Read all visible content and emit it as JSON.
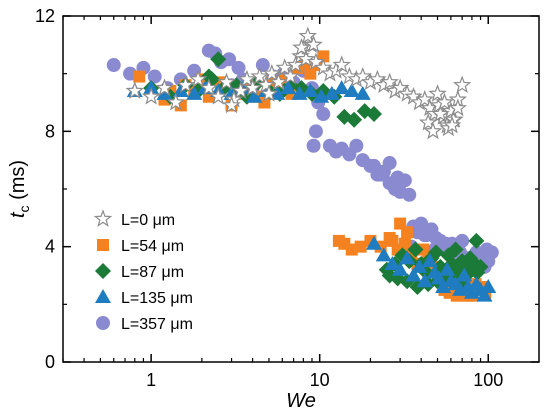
{
  "chart_data": {
    "type": "scatter",
    "title": "",
    "xlabel": "We",
    "ylabel": {
      "main": "t",
      "sub": "c",
      "unit": " (ms)"
    },
    "xscale": "log",
    "xlim": [
      0.3,
      200
    ],
    "ylim": [
      0,
      12
    ],
    "xticks": [
      1,
      10,
      100
    ],
    "xtick_labels": [
      "1",
      "10",
      "100"
    ],
    "yticks": [
      0,
      4,
      8,
      12
    ],
    "ytick_labels": [
      "0",
      "4",
      "8",
      "12"
    ],
    "grid": false,
    "legend_position": "lower-left",
    "series": [
      {
        "name": "L=0 μm",
        "marker": "star-open",
        "color": "#8c8c8c",
        "x": [
          0.8,
          1.0,
          1.2,
          1.4,
          1.6,
          1.9,
          2.2,
          2.5,
          2.8,
          3.1,
          3.4,
          3.7,
          4.0,
          4.4,
          4.8,
          5.2,
          5.7,
          6.2,
          6.7,
          7.2,
          7.7,
          8.3,
          8.9,
          9.5,
          10.5,
          11.5,
          12.5,
          13.5,
          15,
          16.5,
          18,
          20,
          22,
          24,
          26,
          28,
          30,
          33,
          36,
          39,
          42,
          45,
          48,
          51,
          54,
          57,
          60,
          63,
          66,
          70,
          8.5,
          9.2,
          7.8,
          3.0,
          5.0,
          44,
          47,
          52,
          58,
          62,
          66,
          50,
          55,
          61
        ],
        "y": [
          9.4,
          9.2,
          9.5,
          9.0,
          9.6,
          9.8,
          9.5,
          9.2,
          9.7,
          9.1,
          9.4,
          9.8,
          9.5,
          9.9,
          9.6,
          10.0,
          9.7,
          10.2,
          9.9,
          10.3,
          10.6,
          10.5,
          11.0,
          10.4,
          10.2,
          10.0,
          10.1,
          10.3,
          9.9,
          9.8,
          9.9,
          9.7,
          9.8,
          9.6,
          9.7,
          9.4,
          9.5,
          9.3,
          9.2,
          9.0,
          9.1,
          8.8,
          8.6,
          8.9,
          8.5,
          8.2,
          8.7,
          8.4,
          9.1,
          9.6,
          11.3,
          11.0,
          10.9,
          8.9,
          9.3,
          8.3,
          8.0,
          8.6,
          8.1,
          8.4,
          8.8,
          9.3,
          9.0,
          8.2
        ]
      },
      {
        "name": "L=54 μm",
        "marker": "square",
        "color": "#f48220",
        "x": [
          0.85,
          1.2,
          1.5,
          1.8,
          2.2,
          2.6,
          3.0,
          3.4,
          3.8,
          4.2,
          4.7,
          5.2,
          5.7,
          6.2,
          6.8,
          7.4,
          8.1,
          8.8,
          9.6,
          10.5,
          1.3,
          1.6,
          2.0,
          3.2,
          13,
          14,
          15.5,
          17.5,
          20,
          23,
          26,
          29,
          32,
          35,
          38,
          41,
          44,
          47,
          50,
          53,
          56,
          59,
          62,
          65,
          68,
          72,
          76,
          80,
          84,
          88,
          92,
          96,
          30,
          27,
          33,
          60,
          65,
          70,
          55,
          58,
          75,
          82
        ],
        "y": [
          9.9,
          9.1,
          8.9,
          9.4,
          9.2,
          9.7,
          8.9,
          9.3,
          9.6,
          9.2,
          9.0,
          9.7,
          9.4,
          9.8,
          9.3,
          10.2,
          10.4,
          10.0,
          10.3,
          10.6,
          9.4,
          9.6,
          9.8,
          9.5,
          4.2,
          4.1,
          3.9,
          4.0,
          4.2,
          4.0,
          4.3,
          3.9,
          4.1,
          3.7,
          3.4,
          3.9,
          3.6,
          3.3,
          3.2,
          3.0,
          2.7,
          2.4,
          2.6,
          2.3,
          2.5,
          2.6,
          2.4,
          2.3,
          2.7,
          2.5,
          2.6,
          2.4,
          4.8,
          4.2,
          4.5,
          2.8,
          2.9,
          2.4,
          2.5,
          2.7,
          2.3,
          2.5
        ]
      },
      {
        "name": "L=87 μm",
        "marker": "diamond",
        "color": "#1b7a37",
        "x": [
          1.0,
          1.3,
          1.6,
          1.9,
          2.3,
          2.7,
          3.2,
          3.7,
          4.3,
          5.0,
          5.8,
          6.7,
          7.8,
          9.0,
          10.5,
          12.2,
          14,
          16,
          18.5,
          21,
          2.5,
          2.2,
          25,
          28,
          31,
          34,
          37,
          40,
          43,
          46,
          49,
          52,
          55,
          58,
          61,
          64,
          67,
          70,
          74,
          78,
          82,
          86,
          90,
          26,
          29,
          33,
          38,
          44,
          50,
          57,
          63,
          69,
          75,
          80,
          85
        ],
        "y": [
          9.5,
          9.2,
          9.6,
          9.4,
          9.8,
          9.5,
          9.6,
          9.2,
          9.7,
          9.4,
          9.3,
          9.6,
          9.5,
          9.3,
          9.4,
          9.2,
          8.5,
          8.4,
          8.7,
          8.6,
          10.5,
          9.9,
          3.2,
          3.4,
          3.7,
          3.5,
          3.9,
          3.4,
          3.1,
          3.6,
          3.8,
          3.3,
          3.0,
          3.7,
          3.4,
          3.9,
          3.2,
          3.5,
          3.0,
          3.6,
          3.4,
          3.1,
          3.3,
          3.0,
          2.9,
          2.8,
          2.6,
          2.7,
          2.8,
          2.9,
          3.0,
          2.7,
          3.2,
          3.5,
          4.2
        ]
      },
      {
        "name": "L=135 μm",
        "marker": "triangle",
        "color": "#1f7cc1",
        "x": [
          0.8,
          1.0,
          1.2,
          1.5,
          1.8,
          2.1,
          2.5,
          3.0,
          3.5,
          4.1,
          4.8,
          5.6,
          6.5,
          7.6,
          8.8,
          10.2,
          11.8,
          13.5,
          15.5,
          18,
          21,
          24,
          27,
          30,
          33,
          36,
          39,
          42,
          45,
          48,
          51,
          54,
          57,
          60,
          64,
          68,
          72,
          76,
          80,
          85,
          90,
          95,
          100
        ],
        "y": [
          9.4,
          9.5,
          9.3,
          9.4,
          9.3,
          9.5,
          9.4,
          9.3,
          9.5,
          9.2,
          9.4,
          9.3,
          9.5,
          9.3,
          9.4,
          9.2,
          9.3,
          9.5,
          9.4,
          9.3,
          4.1,
          3.7,
          3.4,
          3.2,
          3.6,
          3.0,
          3.3,
          2.8,
          3.5,
          3.1,
          2.9,
          2.6,
          3.2,
          2.8,
          2.7,
          2.5,
          3.0,
          2.6,
          2.4,
          2.7,
          2.5,
          2.3,
          2.6
        ]
      },
      {
        "name": "L=357 μm",
        "marker": "circle",
        "color": "#8a8ad0",
        "x": [
          0.6,
          0.75,
          0.9,
          1.05,
          1.25,
          1.5,
          1.8,
          2.2,
          2.6,
          3.0,
          3.5,
          4.0,
          4.6,
          5.3,
          6.1,
          7.0,
          8.0,
          9.0,
          9.8,
          10.5,
          11.5,
          12.5,
          13.5,
          15,
          16.5,
          18,
          20,
          22,
          24,
          26,
          28,
          30,
          32,
          34,
          36,
          38,
          40,
          43,
          46,
          49,
          52,
          55,
          58,
          61,
          64,
          68,
          72,
          76,
          80,
          85,
          90,
          95,
          100,
          105,
          9.2,
          9.5,
          24,
          26,
          27,
          29,
          21,
          23,
          2.4,
          2.9,
          3.3,
          35,
          42,
          48,
          56,
          63,
          70,
          78,
          88,
          98
        ],
        "y": [
          10.3,
          10.0,
          10.2,
          9.9,
          9.5,
          9.8,
          10.1,
          10.8,
          10.4,
          9.6,
          9.8,
          9.5,
          10.3,
          9.9,
          10.0,
          9.7,
          10.1,
          9.5,
          9.0,
          8.6,
          7.5,
          7.3,
          7.4,
          7.2,
          7.5,
          7.0,
          6.8,
          6.5,
          6.6,
          6.2,
          6.0,
          5.9,
          6.3,
          5.8,
          4.7,
          4.5,
          4.8,
          4.4,
          4.6,
          4.3,
          4.2,
          4.0,
          3.9,
          4.1,
          3.7,
          3.8,
          3.5,
          3.6,
          3.4,
          3.8,
          3.6,
          3.3,
          3.5,
          3.8,
          7.5,
          8.0,
          6.6,
          6.9,
          6.2,
          6.4,
          6.8,
          6.5,
          10.7,
          10.5,
          10.2,
          4.0,
          4.4,
          3.9,
          4.1,
          3.7,
          4.2,
          3.4,
          3.6,
          3.9
        ]
      }
    ]
  }
}
